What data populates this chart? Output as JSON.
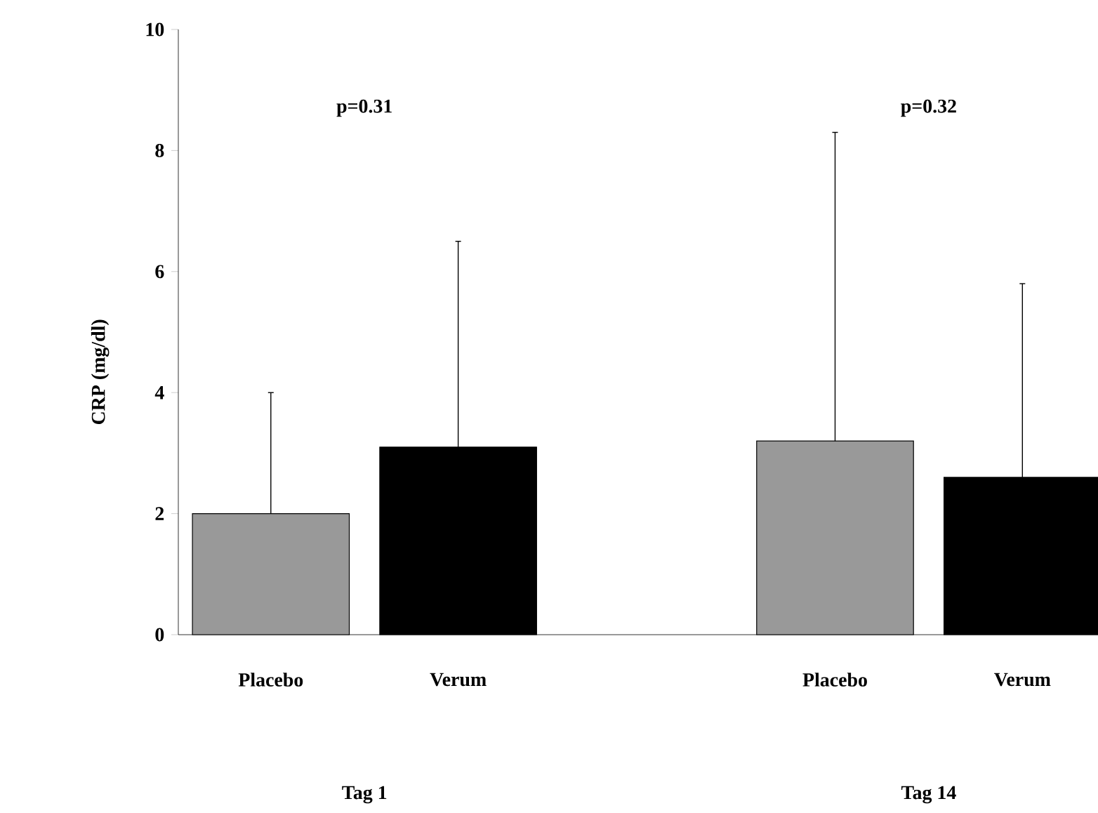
{
  "chart_data": {
    "type": "bar",
    "ylabel": "CRP (mg/dl)",
    "categories": [
      "Tag 1",
      "Tag 14"
    ],
    "series": [
      {
        "name": "Placebo",
        "color": "#999999",
        "values": [
          2.0,
          3.2
        ],
        "errors": [
          [
            2.0,
            4.0
          ],
          [
            3.2,
            8.3
          ]
        ]
      },
      {
        "name": "Verum",
        "color": "#000000",
        "values": [
          3.1,
          2.6
        ],
        "errors": [
          [
            3.1,
            6.5
          ],
          [
            2.6,
            5.8
          ]
        ]
      }
    ],
    "ylim": [
      0,
      10
    ],
    "yticks": [
      0,
      2,
      4,
      6,
      8,
      10
    ],
    "annotations": [
      "p=0.31",
      "p=0.32"
    ],
    "grid": false
  }
}
